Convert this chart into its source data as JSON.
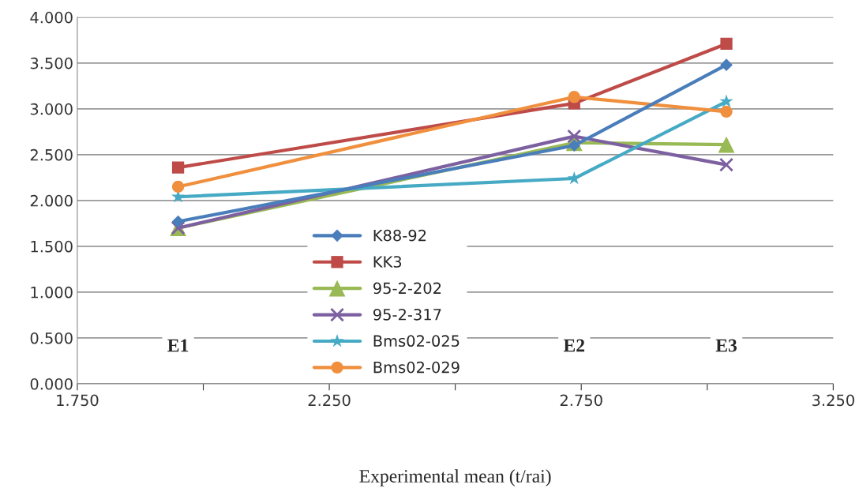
{
  "chart_data": {
    "type": "line",
    "xlabel": "Experimental mean (t/rai)",
    "x": [
      1.95,
      2.736,
      3.038
    ],
    "series": [
      {
        "name": "K88-92",
        "color": "#4a7ebb",
        "marker": "diamond",
        "values": [
          1.77,
          2.6,
          3.48
        ]
      },
      {
        "name": "KK3",
        "color": "#be4b48",
        "marker": "square",
        "values": [
          2.36,
          3.06,
          3.71
        ]
      },
      {
        "name": "95-2-202",
        "color": "#98b954",
        "marker": "triangle",
        "values": [
          1.7,
          2.63,
          2.61
        ]
      },
      {
        "name": "95-2-317",
        "color": "#7d60a0",
        "marker": "cross",
        "values": [
          1.7,
          2.7,
          2.39
        ]
      },
      {
        "name": "Bms02-025",
        "color": "#46aac5",
        "marker": "star",
        "values": [
          2.04,
          2.24,
          3.08
        ]
      },
      {
        "name": "Bms02-029",
        "color": "#f0903e",
        "marker": "circle",
        "values": [
          2.15,
          3.13,
          2.97
        ]
      }
    ],
    "annotations": [
      {
        "text": "E1",
        "x": 1.95,
        "y": 0.4
      },
      {
        "text": "E2",
        "x": 2.736,
        "y": 0.4
      },
      {
        "text": "E3",
        "x": 3.038,
        "y": 0.4
      }
    ],
    "xlim": [
      1.75,
      3.25
    ],
    "xticks": [
      {
        "value": 1.75,
        "label": "1.750"
      },
      {
        "value": 2.0,
        "label": null
      },
      {
        "value": 2.25,
        "label": "2.250"
      },
      {
        "value": 2.5,
        "label": null
      },
      {
        "value": 2.75,
        "label": "2.750"
      },
      {
        "value": 3.0,
        "label": null
      },
      {
        "value": 3.25,
        "label": "3.250"
      }
    ],
    "ylim": [
      0,
      4
    ],
    "yticks": [
      {
        "value": 0,
        "label": "0.000"
      },
      {
        "value": 0.5,
        "label": "0.500"
      },
      {
        "value": 1.0,
        "label": "1.000"
      },
      {
        "value": 1.5,
        "label": "1.500"
      },
      {
        "value": 2.0,
        "label": "2.000"
      },
      {
        "value": 2.5,
        "label": "2.500"
      },
      {
        "value": 3.0,
        "label": "3.000"
      },
      {
        "value": 3.5,
        "label": "3.500"
      },
      {
        "value": 4.0,
        "label": "4.000"
      }
    ],
    "grid": "y",
    "legend": "bottom",
    "line_style": "solid"
  }
}
